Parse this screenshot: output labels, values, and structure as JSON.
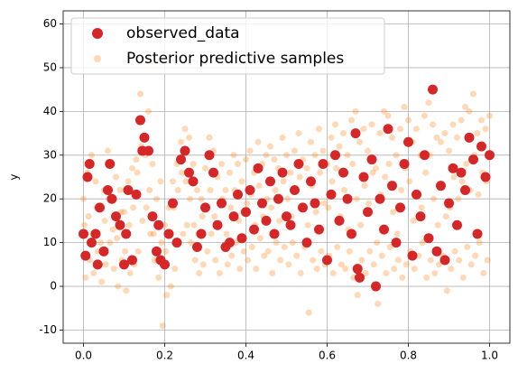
{
  "chart_data": {
    "type": "scatter",
    "ylabel": "y",
    "xlim": [
      -0.05,
      1.05
    ],
    "ylim": [
      -13,
      63
    ],
    "xticks": [
      {
        "value": 0,
        "label": "0.0"
      },
      0.2,
      0.4,
      0.6,
      0.8,
      {
        "value": 1,
        "label": "1.0"
      }
    ],
    "yticks": [
      -10,
      0,
      10,
      20,
      30,
      40,
      50,
      60
    ],
    "grid": true,
    "legend": "upper left",
    "series": [
      {
        "name": "observed_data",
        "color": "#d62728",
        "x": [
          0,
          0.005,
          0.01,
          0.015,
          0.02,
          0.03,
          0.035,
          0.04,
          0.05,
          0.06,
          0.065,
          0.07,
          0.08,
          0.09,
          0.1,
          0.105,
          0.11,
          0.12,
          0.13,
          0.14,
          0.145,
          0.15,
          0.16,
          0.17,
          0.18,
          0.185,
          0.19,
          0.2,
          0.21,
          0.22,
          0.23,
          0.24,
          0.25,
          0.26,
          0.27,
          0.28,
          0.29,
          0.3,
          0.31,
          0.32,
          0.33,
          0.34,
          0.35,
          0.36,
          0.37,
          0.38,
          0.39,
          0.4,
          0.41,
          0.42,
          0.43,
          0.44,
          0.45,
          0.46,
          0.47,
          0.48,
          0.49,
          0.5,
          0.51,
          0.52,
          0.53,
          0.54,
          0.55,
          0.56,
          0.57,
          0.58,
          0.59,
          0.6,
          0.61,
          0.62,
          0.63,
          0.64,
          0.65,
          0.66,
          0.67,
          0.675,
          0.68,
          0.69,
          0.7,
          0.71,
          0.72,
          0.73,
          0.74,
          0.75,
          0.76,
          0.77,
          0.78,
          0.79,
          0.8,
          0.81,
          0.82,
          0.83,
          0.84,
          0.85,
          0.86,
          0.87,
          0.88,
          0.89,
          0.9,
          0.91,
          0.92,
          0.93,
          0.94,
          0.95,
          0.96,
          0.97,
          0.98,
          0.99,
          1
        ],
        "values": [
          12,
          7,
          25,
          28,
          10,
          12,
          5,
          18,
          8,
          22,
          28,
          20,
          16,
          14,
          5,
          12,
          22,
          6,
          21,
          38,
          31,
          34,
          31,
          16,
          8,
          14,
          6,
          5,
          12,
          19,
          10,
          29,
          31,
          26,
          24,
          9,
          12,
          18,
          30,
          26,
          14,
          19,
          9,
          10,
          16,
          21,
          11,
          17,
          22,
          13,
          27,
          19,
          15,
          24,
          12,
          20,
          26,
          16,
          14,
          22,
          28,
          18,
          10,
          24,
          19,
          13,
          28,
          6,
          21,
          30,
          15,
          26,
          20,
          12,
          35,
          4,
          2,
          25,
          17,
          29,
          0,
          20,
          13,
          36,
          23,
          10,
          18,
          28,
          33,
          7,
          21,
          16,
          30,
          11,
          45,
          8,
          23,
          6,
          19,
          27,
          14,
          26,
          22,
          34,
          29,
          12,
          32,
          25,
          30
        ]
      },
      {
        "name": "Posterior predictive samples",
        "color": "#ff7f0e",
        "alpha": 0.3,
        "x": [
          0,
          0.01,
          0.02,
          0.03,
          0.04,
          0.05,
          0.06,
          0.07,
          0.08,
          0.09,
          0.1,
          0.11,
          0.12,
          0.13,
          0.14,
          0.15,
          0.16,
          0.17,
          0.18,
          0.19,
          0.2,
          0.21,
          0.22,
          0.23,
          0.24,
          0.25,
          0.26,
          0.27,
          0.28,
          0.29,
          0.3,
          0.31,
          0.32,
          0.33,
          0.34,
          0.35,
          0.36,
          0.37,
          0.38,
          0.39,
          0.4,
          0.41,
          0.42,
          0.43,
          0.44,
          0.45,
          0.46,
          0.47,
          0.48,
          0.49,
          0.5,
          0.51,
          0.52,
          0.53,
          0.54,
          0.55,
          0.56,
          0.57,
          0.58,
          0.59,
          0.6,
          0.61,
          0.62,
          0.63,
          0.64,
          0.65,
          0.66,
          0.67,
          0.68,
          0.69,
          0.7,
          0.71,
          0.72,
          0.73,
          0.74,
          0.75,
          0.76,
          0.77,
          0.78,
          0.79,
          0.8,
          0.81,
          0.82,
          0.83,
          0.84,
          0.85,
          0.86,
          0.87,
          0.88,
          0.89,
          0.9,
          0.91,
          0.92,
          0.93,
          0.94,
          0.95,
          0.96,
          0.97,
          0.98,
          0.99,
          1,
          0.005,
          0.015,
          0.025,
          0.035,
          0.045,
          0.055,
          0.065,
          0.075,
          0.085,
          0.095,
          0.105,
          0.115,
          0.125,
          0.135,
          0.145,
          0.155,
          0.165,
          0.175,
          0.185,
          0.195,
          0.205,
          0.215,
          0.225,
          0.235,
          0.245,
          0.255,
          0.265,
          0.275,
          0.285,
          0.295,
          0.305,
          0.315,
          0.325,
          0.335,
          0.345,
          0.355,
          0.365,
          0.375,
          0.385,
          0.395,
          0.405,
          0.415,
          0.425,
          0.435,
          0.445,
          0.455,
          0.465,
          0.475,
          0.485,
          0.495,
          0.505,
          0.515,
          0.525,
          0.535,
          0.545,
          0.555,
          0.565,
          0.575,
          0.585,
          0.595,
          0.605,
          0.615,
          0.625,
          0.635,
          0.645,
          0.655,
          0.665,
          0.675,
          0.685,
          0.695,
          0.705,
          0.715,
          0.725,
          0.735,
          0.745,
          0.755,
          0.765,
          0.775,
          0.785,
          0.795,
          0.805,
          0.815,
          0.825,
          0.835,
          0.845,
          0.855,
          0.865,
          0.875,
          0.885,
          0.895,
          0.905,
          0.915,
          0.925,
          0.935,
          0.945,
          0.955,
          0.965,
          0.975,
          0.985,
          0.995,
          0.0025,
          0.0125,
          0.0225,
          0.0325,
          0.0425,
          0.0525,
          0.0625,
          0.0725,
          0.0825,
          0.0925,
          0.1025,
          0.1125,
          0.1225,
          0.1325,
          0.1425,
          0.1525,
          0.1625,
          0.1725,
          0.1825,
          0.1925,
          0.2025,
          0.2125,
          0.2225,
          0.2325,
          0.2425,
          0.2525,
          0.2625,
          0.2725,
          0.2825,
          0.2925,
          0.3025,
          0.3125,
          0.3225,
          0.3325,
          0.3425,
          0.3525,
          0.3625,
          0.3725,
          0.3825,
          0.3925,
          0.4025,
          0.4125,
          0.4225,
          0.4325,
          0.4425,
          0.4525,
          0.4625,
          0.4725,
          0.4825,
          0.4925,
          0.5025,
          0.5125,
          0.5225,
          0.5325,
          0.5425,
          0.5525,
          0.5625,
          0.5725,
          0.5825,
          0.5925,
          0.6025,
          0.6125,
          0.6225,
          0.6325,
          0.6425,
          0.6525,
          0.6625,
          0.6725,
          0.6825,
          0.6925,
          0.7025,
          0.7125,
          0.7225,
          0.7325,
          0.7425,
          0.7525,
          0.7625,
          0.7725,
          0.7825,
          0.7925,
          0.8025,
          0.8125,
          0.8225,
          0.8325,
          0.8425,
          0.8525,
          0.8625,
          0.8725,
          0.8825,
          0.8925,
          0.9025,
          0.9125,
          0.9225,
          0.9325,
          0.9425,
          0.9525,
          0.9625,
          0.9725,
          0.9825,
          0.9925
        ],
        "values": [
          20,
          26,
          30,
          24,
          18,
          22,
          31,
          28,
          25,
          22,
          17,
          24,
          27,
          29,
          44,
          52,
          40,
          28,
          20,
          24,
          14,
          18,
          24,
          28,
          33,
          36,
          34,
          28,
          22,
          20,
          27,
          34,
          31,
          25,
          28,
          22,
          26,
          30,
          28,
          24,
          29,
          31,
          26,
          33,
          28,
          30,
          32,
          29,
          27,
          34,
          30,
          26,
          31,
          35,
          29,
          27,
          33,
          30,
          36,
          31,
          28,
          34,
          37,
          32,
          35,
          30,
          38,
          40,
          33,
          36,
          31,
          37,
          27,
          35,
          40,
          39,
          34,
          30,
          36,
          41,
          38,
          33,
          36,
          30,
          39,
          42,
          37,
          34,
          33,
          35,
          31,
          37,
          34,
          38,
          41,
          40,
          44,
          35,
          38,
          36,
          39,
          2,
          6,
          3,
          8,
          1,
          5,
          10,
          4,
          0,
          6,
          -1,
          3,
          5,
          8,
          15,
          18,
          12,
          6,
          2,
          -9,
          -2,
          0,
          4,
          10,
          12,
          14,
          10,
          6,
          3,
          5,
          8,
          12,
          6,
          3,
          9,
          5,
          7,
          10,
          4,
          8,
          6,
          9,
          4,
          11,
          7,
          8,
          3,
          10,
          6,
          9,
          5,
          10,
          7,
          3,
          9,
          -6,
          6,
          4,
          8,
          5,
          7,
          3,
          9,
          5,
          4,
          8,
          2,
          -2,
          6,
          3,
          8,
          5,
          -4,
          7,
          3,
          9,
          4,
          6,
          2,
          5,
          8,
          4,
          7,
          10,
          2,
          6,
          3,
          5,
          7,
          -1,
          4,
          8,
          6,
          2,
          9,
          5,
          7,
          10,
          3,
          6,
          14,
          16,
          12,
          18,
          10,
          15,
          20,
          13,
          11,
          17,
          8,
          14,
          18,
          26,
          32,
          30,
          22,
          12,
          6,
          10,
          8,
          12,
          18,
          22,
          26,
          24,
          20,
          14,
          12,
          16,
          18,
          22,
          16,
          14,
          20,
          12,
          18,
          22,
          15,
          17,
          19,
          21,
          14,
          23,
          16,
          20,
          18,
          22,
          15,
          24,
          20,
          16,
          22,
          25,
          18,
          14,
          23,
          17,
          26,
          19,
          18,
          24,
          27,
          16,
          22,
          13,
          28,
          20,
          14,
          23,
          19,
          26,
          10,
          21,
          25,
          28,
          17,
          12,
          22,
          27,
          24,
          15,
          21,
          18,
          26,
          30,
          20,
          14,
          23,
          16,
          18,
          25,
          20,
          24,
          28,
          22,
          30,
          21,
          26,
          24
        ]
      }
    ]
  }
}
